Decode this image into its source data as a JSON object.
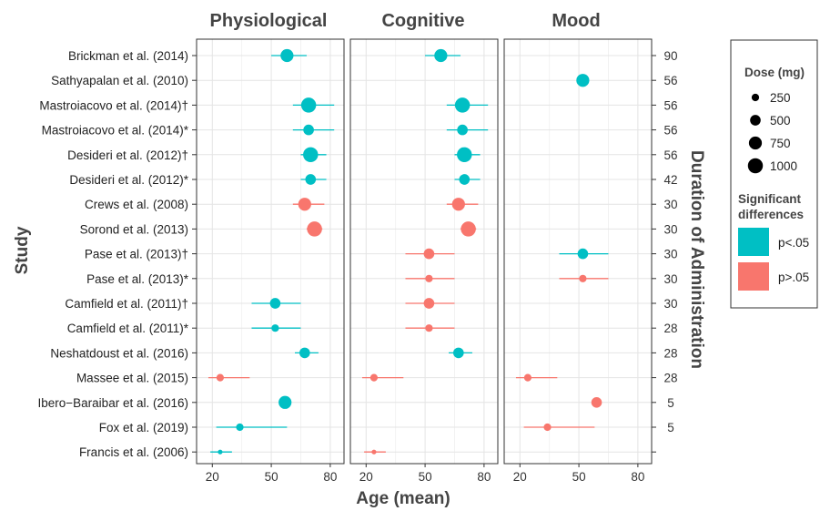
{
  "chart_data": {
    "type": "scatter",
    "panels": [
      "Physiological",
      "Cognitive",
      "Mood"
    ],
    "xlabel": "Age (mean)",
    "ylabel": "Study",
    "y2label": "Duration of Administration",
    "xticks": [
      20,
      50,
      80
    ],
    "xlim": [
      12,
      87
    ],
    "grid": true,
    "legend_position": "right",
    "colors": {
      "significant": "#00BFC4",
      "not_significant": "#F8766D"
    },
    "legend": {
      "dose_title": "Dose (mg)",
      "dose_levels": [
        250,
        500,
        750,
        1000
      ],
      "sig_title_line1": "Significant",
      "sig_title_line2": "differences",
      "sig_labels": [
        "p<.05",
        "p>.05"
      ]
    },
    "studies": [
      {
        "label": "Brickman et al. (2014)",
        "duration": 90
      },
      {
        "label": "Sathyapalan et al. (2010)",
        "duration": 56
      },
      {
        "label": "Mastroiacovo et al. (2014)†",
        "duration": 56
      },
      {
        "label": "Mastroiacovo et al. (2014)*",
        "duration": 56
      },
      {
        "label": "Desideri et al. (2012)†",
        "duration": 56
      },
      {
        "label": "Desideri et al. (2012)*",
        "duration": 42
      },
      {
        "label": "Crews et al. (2008)",
        "duration": 30
      },
      {
        "label": "Sorond et al. (2013)",
        "duration": 30
      },
      {
        "label": "Pase et al. (2013)†",
        "duration": 30
      },
      {
        "label": "Pase et al. (2013)*",
        "duration": 30
      },
      {
        "label": "Camfield et al. (2011)†",
        "duration": 30
      },
      {
        "label": "Camfield et al. (2011)*",
        "duration": 28
      },
      {
        "label": "Neshatdoust et al. (2016)",
        "duration": 28
      },
      {
        "label": "Massee et al. (2015)",
        "duration": 28
      },
      {
        "label": "Ibero−Baraibar et al. (2016)",
        "duration": 5
      },
      {
        "label": "Fox et al. (2019)",
        "duration": 5
      },
      {
        "label": "Francis et al. (2006)",
        "duration": ""
      }
    ],
    "points": [
      {
        "panel": 0,
        "row": 0,
        "age": 58,
        "lo": 50,
        "hi": 68,
        "dose": 750,
        "sig": true
      },
      {
        "panel": 0,
        "row": 2,
        "age": 69,
        "lo": 61,
        "hi": 82,
        "dose": 1000,
        "sig": true
      },
      {
        "panel": 0,
        "row": 3,
        "age": 69,
        "lo": 61,
        "hi": 82,
        "dose": 500,
        "sig": true
      },
      {
        "panel": 0,
        "row": 4,
        "age": 70,
        "lo": 65,
        "hi": 78,
        "dose": 1000,
        "sig": true
      },
      {
        "panel": 0,
        "row": 5,
        "age": 70,
        "lo": 65,
        "hi": 78,
        "dose": 500,
        "sig": true
      },
      {
        "panel": 0,
        "row": 6,
        "age": 67,
        "lo": 61,
        "hi": 77,
        "dose": 750,
        "sig": false
      },
      {
        "panel": 0,
        "row": 7,
        "age": 72,
        "lo": 68,
        "hi": 76,
        "dose": 1000,
        "sig": false
      },
      {
        "panel": 0,
        "row": 10,
        "age": 52,
        "lo": 40,
        "hi": 65,
        "dose": 500,
        "sig": true
      },
      {
        "panel": 0,
        "row": 11,
        "age": 52,
        "lo": 40,
        "hi": 65,
        "dose": 250,
        "sig": true
      },
      {
        "panel": 0,
        "row": 12,
        "age": 67,
        "lo": 62,
        "hi": 74,
        "dose": 500,
        "sig": true
      },
      {
        "panel": 0,
        "row": 13,
        "age": 24,
        "lo": 18,
        "hi": 39,
        "dose": 250,
        "sig": false
      },
      {
        "panel": 0,
        "row": 14,
        "age": 57,
        "lo": null,
        "hi": null,
        "dose": 750,
        "sig": true
      },
      {
        "panel": 0,
        "row": 15,
        "age": 34,
        "lo": 22,
        "hi": 58,
        "dose": 250,
        "sig": true
      },
      {
        "panel": 0,
        "row": 16,
        "age": 24,
        "lo": 19,
        "hi": 30,
        "dose": 100,
        "sig": true
      },
      {
        "panel": 1,
        "row": 0,
        "age": 58,
        "lo": 50,
        "hi": 68,
        "dose": 750,
        "sig": true
      },
      {
        "panel": 1,
        "row": 2,
        "age": 69,
        "lo": 61,
        "hi": 82,
        "dose": 1000,
        "sig": true
      },
      {
        "panel": 1,
        "row": 3,
        "age": 69,
        "lo": 61,
        "hi": 82,
        "dose": 500,
        "sig": true
      },
      {
        "panel": 1,
        "row": 4,
        "age": 70,
        "lo": 65,
        "hi": 78,
        "dose": 1000,
        "sig": true
      },
      {
        "panel": 1,
        "row": 5,
        "age": 70,
        "lo": 65,
        "hi": 78,
        "dose": 500,
        "sig": true
      },
      {
        "panel": 1,
        "row": 6,
        "age": 67,
        "lo": 61,
        "hi": 77,
        "dose": 750,
        "sig": false
      },
      {
        "panel": 1,
        "row": 7,
        "age": 72,
        "lo": 68,
        "hi": 76,
        "dose": 1000,
        "sig": false
      },
      {
        "panel": 1,
        "row": 8,
        "age": 52,
        "lo": 40,
        "hi": 65,
        "dose": 500,
        "sig": false
      },
      {
        "panel": 1,
        "row": 9,
        "age": 52,
        "lo": 40,
        "hi": 65,
        "dose": 250,
        "sig": false
      },
      {
        "panel": 1,
        "row": 10,
        "age": 52,
        "lo": 40,
        "hi": 65,
        "dose": 500,
        "sig": false
      },
      {
        "panel": 1,
        "row": 11,
        "age": 52,
        "lo": 40,
        "hi": 65,
        "dose": 250,
        "sig": false
      },
      {
        "panel": 1,
        "row": 12,
        "age": 67,
        "lo": 62,
        "hi": 74,
        "dose": 500,
        "sig": true
      },
      {
        "panel": 1,
        "row": 13,
        "age": 24,
        "lo": 18,
        "hi": 39,
        "dose": 250,
        "sig": false
      },
      {
        "panel": 1,
        "row": 16,
        "age": 24,
        "lo": 19,
        "hi": 30,
        "dose": 100,
        "sig": false
      },
      {
        "panel": 2,
        "row": 1,
        "age": 52,
        "lo": null,
        "hi": null,
        "dose": 750,
        "sig": true
      },
      {
        "panel": 2,
        "row": 8,
        "age": 52,
        "lo": 40,
        "hi": 65,
        "dose": 500,
        "sig": true
      },
      {
        "panel": 2,
        "row": 9,
        "age": 52,
        "lo": 40,
        "hi": 65,
        "dose": 250,
        "sig": false
      },
      {
        "panel": 2,
        "row": 13,
        "age": 24,
        "lo": 18,
        "hi": 39,
        "dose": 250,
        "sig": false
      },
      {
        "panel": 2,
        "row": 14,
        "age": 59,
        "lo": null,
        "hi": null,
        "dose": 500,
        "sig": false
      },
      {
        "panel": 2,
        "row": 15,
        "age": 34,
        "lo": 22,
        "hi": 58,
        "dose": 250,
        "sig": false
      }
    ]
  }
}
